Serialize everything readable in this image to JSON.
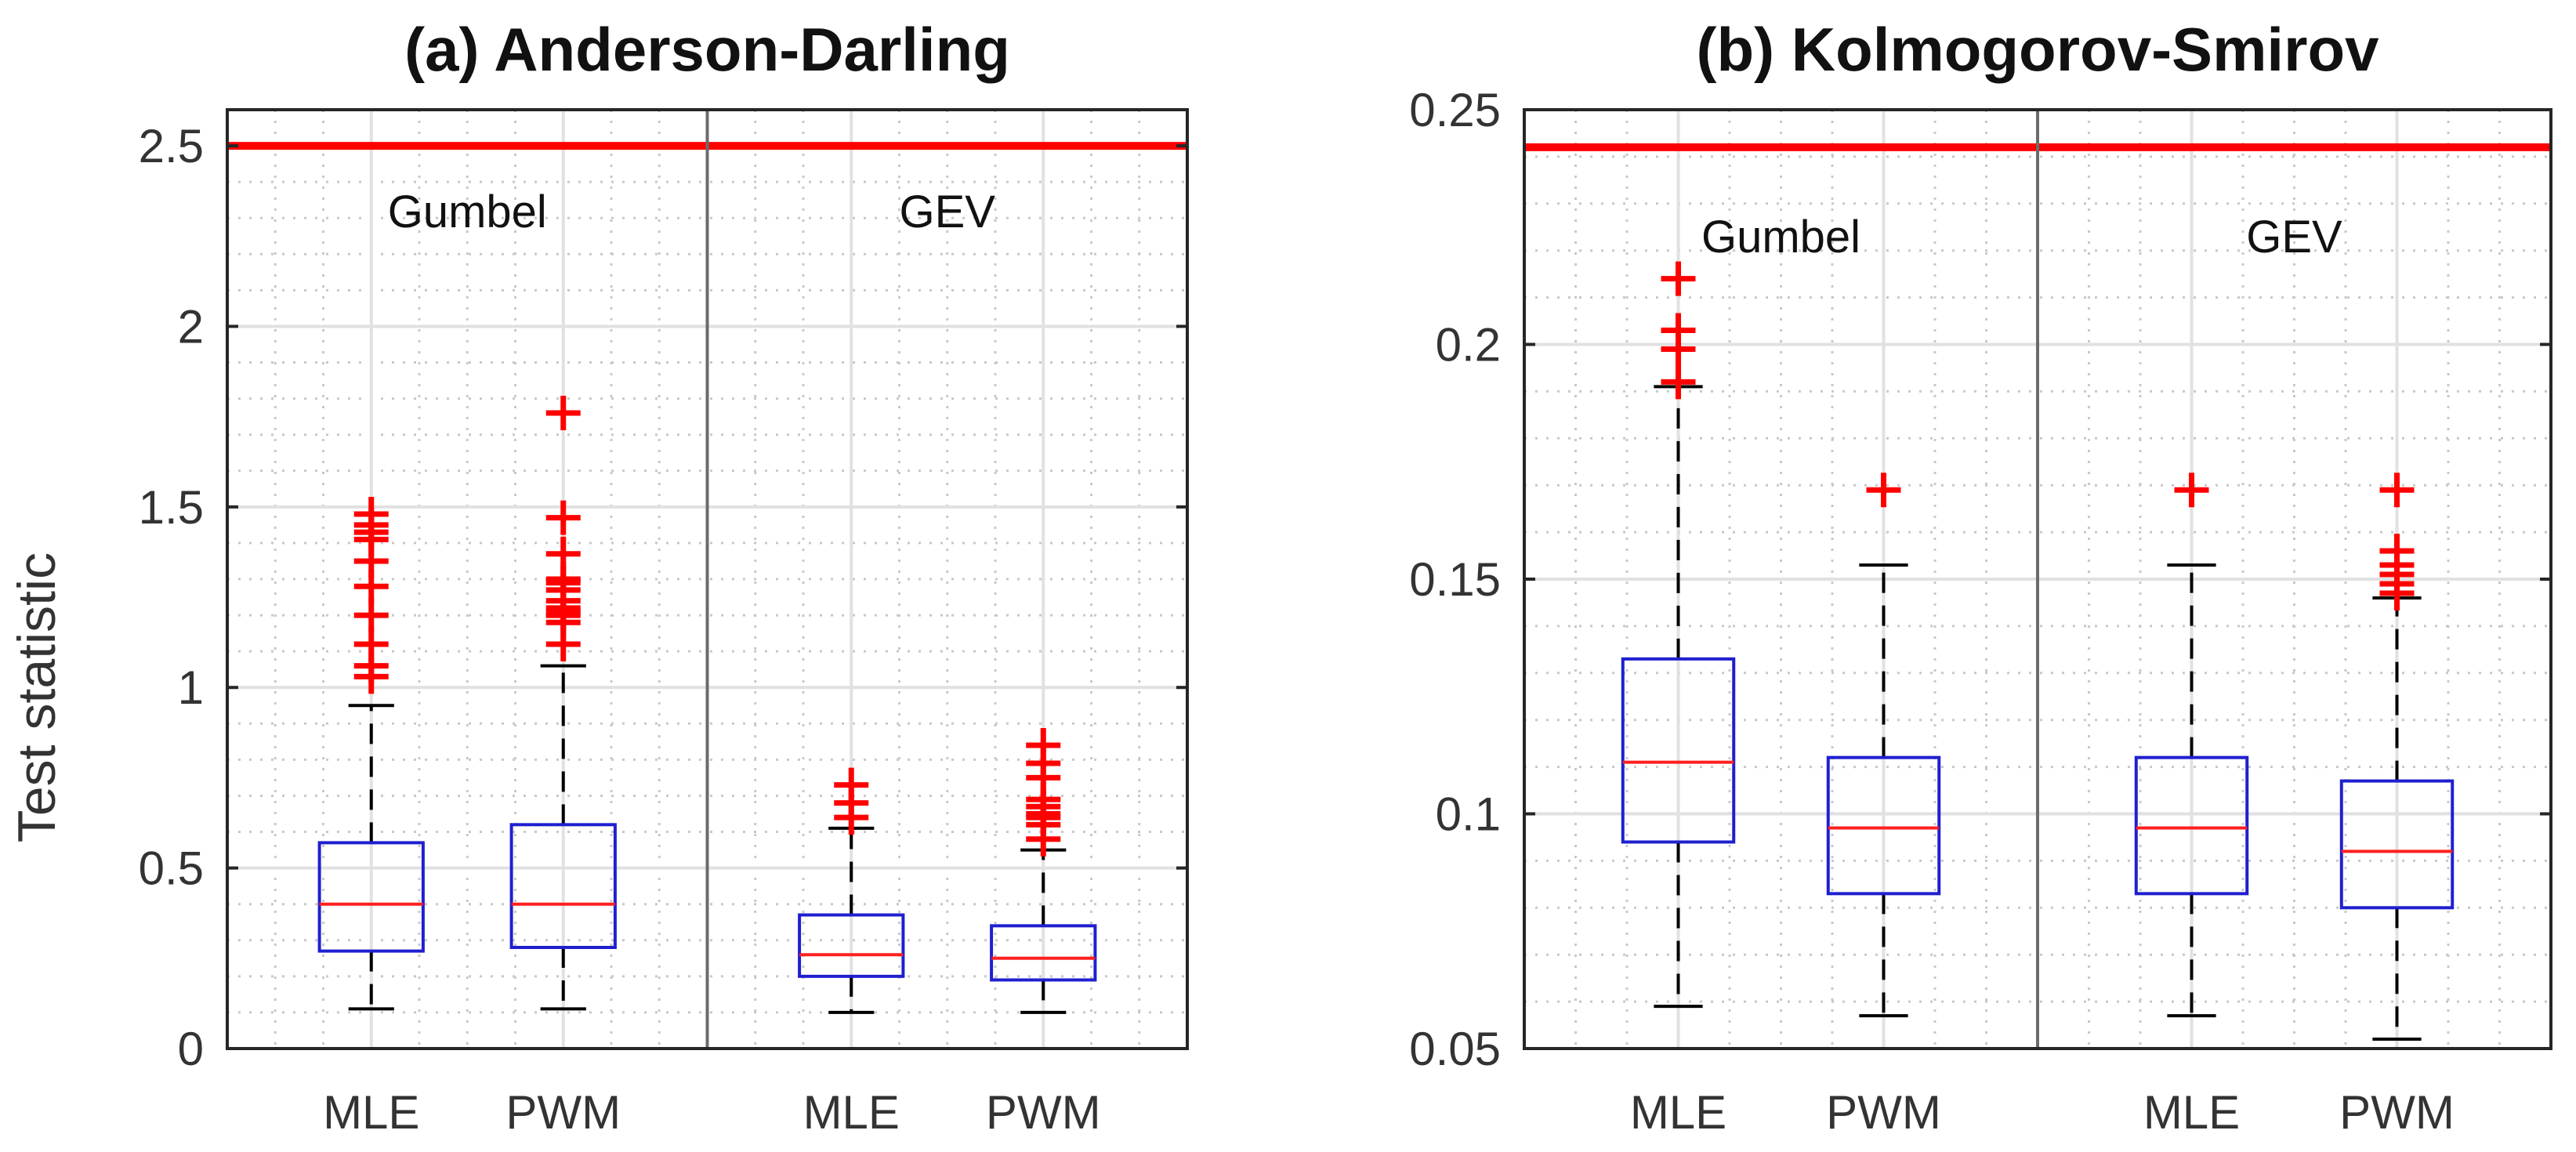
{
  "figure": {
    "ylabel": "Test statistic"
  },
  "chart_data": [
    {
      "type": "boxplot",
      "title": "(a) Anderson-Darling",
      "xlabel": "",
      "ylabel": "Test statistic",
      "ylim": [
        0,
        2.6
      ],
      "yticks": [
        0,
        0.5,
        1,
        1.5,
        2,
        2.5
      ],
      "ytick_labels": [
        "0",
        "0.5",
        "1",
        "1.5",
        "2",
        "2.5"
      ],
      "grid": true,
      "critical_value": 2.5,
      "colors": {
        "box": "#1f1fd0",
        "median": "#ff2020",
        "outlier": "#ff0000",
        "critical": "#ff0000",
        "whisker": "#000000"
      },
      "groups": [
        {
          "name": "Gumbel",
          "boxes": [
            {
              "label": "MLE",
              "whisker_low": 0.11,
              "q1": 0.27,
              "median": 0.4,
              "q3": 0.57,
              "whisker_high": 0.95,
              "outliers": [
                1.03,
                1.06,
                1.12,
                1.2,
                1.28,
                1.35,
                1.41,
                1.43,
                1.45,
                1.48
              ]
            },
            {
              "label": "PWM",
              "whisker_low": 0.11,
              "q1": 0.28,
              "median": 0.4,
              "q3": 0.62,
              "whisker_high": 1.06,
              "outliers": [
                1.12,
                1.18,
                1.2,
                1.21,
                1.22,
                1.24,
                1.27,
                1.29,
                1.3,
                1.37,
                1.47,
                1.76
              ]
            }
          ]
        },
        {
          "name": "GEV",
          "boxes": [
            {
              "label": "MLE",
              "whisker_low": 0.1,
              "q1": 0.2,
              "median": 0.26,
              "q3": 0.37,
              "whisker_high": 0.61,
              "outliers": [
                0.64,
                0.68,
                0.73
              ]
            },
            {
              "label": "PWM",
              "whisker_low": 0.1,
              "q1": 0.19,
              "median": 0.25,
              "q3": 0.34,
              "whisker_high": 0.55,
              "outliers": [
                0.58,
                0.62,
                0.64,
                0.65,
                0.67,
                0.69,
                0.75,
                0.79,
                0.84
              ]
            }
          ]
        }
      ]
    },
    {
      "type": "boxplot",
      "title": "(b) Kolmogorov-Smirov",
      "xlabel": "",
      "ylabel": "",
      "ylim": [
        0.05,
        0.25
      ],
      "yticks": [
        0.05,
        0.1,
        0.15,
        0.2,
        0.25
      ],
      "ytick_labels": [
        "0.05",
        "0.1",
        "0.15",
        "0.2",
        "0.25"
      ],
      "grid": true,
      "critical_value": 0.242,
      "colors": {
        "box": "#1f1fd0",
        "median": "#ff2020",
        "outlier": "#ff0000",
        "critical": "#ff0000",
        "whisker": "#000000"
      },
      "groups": [
        {
          "name": "Gumbel",
          "boxes": [
            {
              "label": "MLE",
              "whisker_low": 0.059,
              "q1": 0.094,
              "median": 0.111,
              "q3": 0.133,
              "whisker_high": 0.191,
              "outliers": [
                0.192,
                0.199,
                0.203,
                0.214
              ]
            },
            {
              "label": "PWM",
              "whisker_low": 0.057,
              "q1": 0.083,
              "median": 0.097,
              "q3": 0.112,
              "whisker_high": 0.153,
              "outliers": [
                0.169
              ]
            }
          ]
        },
        {
          "name": "GEV",
          "boxes": [
            {
              "label": "MLE",
              "whisker_low": 0.057,
              "q1": 0.083,
              "median": 0.097,
              "q3": 0.112,
              "whisker_high": 0.153,
              "outliers": [
                0.169
              ]
            },
            {
              "label": "PWM",
              "whisker_low": 0.052,
              "q1": 0.08,
              "median": 0.092,
              "q3": 0.107,
              "whisker_high": 0.146,
              "outliers": [
                0.147,
                0.149,
                0.151,
                0.153,
                0.156,
                0.169
              ]
            }
          ]
        }
      ]
    }
  ]
}
